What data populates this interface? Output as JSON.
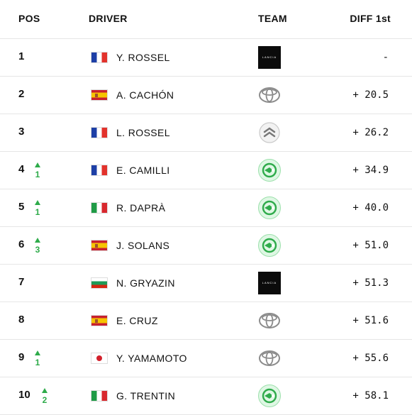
{
  "header": {
    "pos": "POS",
    "driver": "DRIVER",
    "team": "TEAM",
    "diff": "DIFF 1st"
  },
  "rows": [
    {
      "pos": "1",
      "change": "",
      "flag": "fr",
      "driver": "Y. ROSSEL",
      "team": "lancia",
      "diff": "-"
    },
    {
      "pos": "2",
      "change": "",
      "flag": "es",
      "driver": "A. CACHÓN",
      "team": "toyota",
      "diff": "+ 20.5"
    },
    {
      "pos": "3",
      "change": "",
      "flag": "fr",
      "driver": "L. ROSSEL",
      "team": "citroen",
      "diff": "+ 26.2"
    },
    {
      "pos": "4",
      "change": "1",
      "flag": "fr",
      "driver": "E. CAMILLI",
      "team": "skoda",
      "diff": "+ 34.9"
    },
    {
      "pos": "5",
      "change": "1",
      "flag": "it",
      "driver": "R. DAPRÀ",
      "team": "skoda",
      "diff": "+ 40.0"
    },
    {
      "pos": "6",
      "change": "3",
      "flag": "es",
      "driver": "J. SOLANS",
      "team": "skoda",
      "diff": "+ 51.0"
    },
    {
      "pos": "7",
      "change": "",
      "flag": "bg",
      "driver": "N. GRYAZIN",
      "team": "lancia",
      "diff": "+ 51.3"
    },
    {
      "pos": "8",
      "change": "",
      "flag": "es",
      "driver": "E. CRUZ",
      "team": "toyota",
      "diff": "+ 51.6"
    },
    {
      "pos": "9",
      "change": "1",
      "flag": "jp",
      "driver": "Y. YAMAMOTO",
      "team": "toyota",
      "diff": "+ 55.6"
    },
    {
      "pos": "10",
      "change": "2",
      "flag": "it",
      "driver": "G. TRENTIN",
      "team": "skoda",
      "diff": "+ 58.1"
    }
  ]
}
